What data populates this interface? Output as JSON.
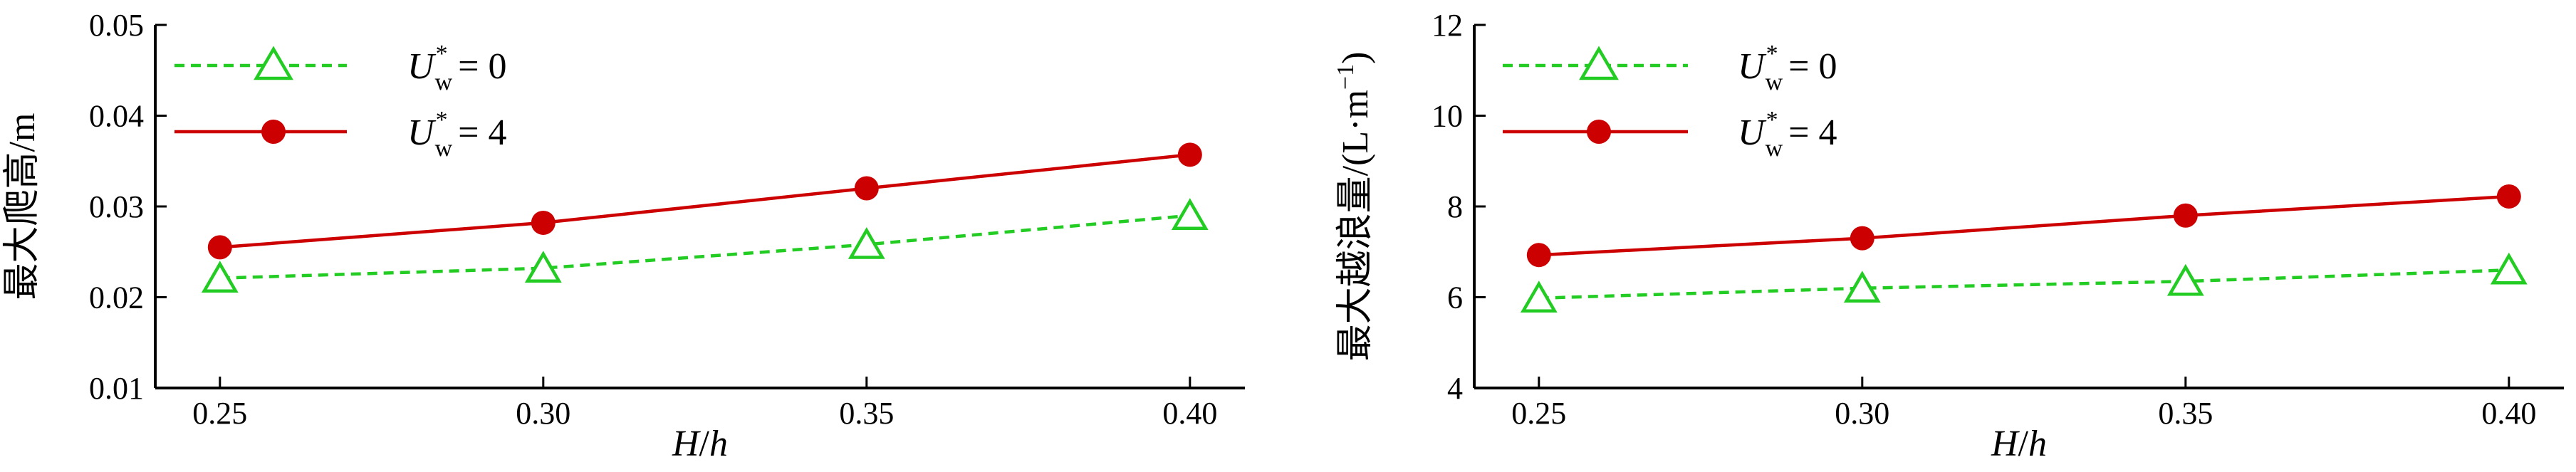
{
  "chart_data": [
    {
      "type": "line",
      "x": [
        0.25,
        0.3,
        0.35,
        0.4
      ],
      "xticks": [
        "0.25",
        "0.30",
        "0.35",
        "0.40"
      ],
      "xlim": [
        0.24,
        0.4085
      ],
      "xlabel_parts": [
        "H",
        "/",
        "h"
      ],
      "ylabel": "最大爬高/m",
      "ylim": [
        0.01,
        0.05
      ],
      "yticks": [
        "0.01",
        "0.02",
        "0.03",
        "0.04",
        "0.05"
      ],
      "grid": false,
      "legend_position": "top-left",
      "series": [
        {
          "name": "U*w = 0",
          "label_main": "U",
          "label_sup": "*",
          "label_sub": "w",
          "label_tail": "= 0",
          "values": [
            0.0221,
            0.0232,
            0.0258,
            0.029
          ],
          "color": "#22cc22",
          "line": "dashed",
          "marker": "triangle-open"
        },
        {
          "name": "U*w = 4",
          "label_main": "U",
          "label_sup": "*",
          "label_sub": "w",
          "label_tail": "= 4",
          "values": [
            0.0255,
            0.0282,
            0.032,
            0.0357
          ],
          "color": "#cc0000",
          "line": "solid",
          "marker": "circle-filled"
        }
      ]
    },
    {
      "type": "line",
      "x": [
        0.25,
        0.3,
        0.35,
        0.4
      ],
      "xticks": [
        "0.25",
        "0.30",
        "0.35",
        "0.40"
      ],
      "xlim": [
        0.24,
        0.4085
      ],
      "xlabel_parts": [
        "H",
        "/",
        "h"
      ],
      "ylabel_main": "最大越浪量/(L·m",
      "ylabel_sup": "−1",
      "ylabel_tail": ")",
      "ylim": [
        4,
        12
      ],
      "yticks": [
        "4",
        "6",
        "8",
        "10",
        "12"
      ],
      "grid": false,
      "legend_position": "top-left",
      "series": [
        {
          "name": "U*w = 0",
          "label_main": "U",
          "label_sup": "*",
          "label_sub": "w",
          "label_tail": "= 0",
          "values": [
            5.98,
            6.2,
            6.35,
            6.6
          ],
          "color": "#22cc22",
          "line": "dashed",
          "marker": "triangle-open"
        },
        {
          "name": "U*w = 4",
          "label_main": "U",
          "label_sup": "*",
          "label_sub": "w",
          "label_tail": "= 4",
          "values": [
            6.93,
            7.3,
            7.8,
            8.22
          ],
          "color": "#cc0000",
          "line": "solid",
          "marker": "circle-filled"
        }
      ]
    }
  ]
}
